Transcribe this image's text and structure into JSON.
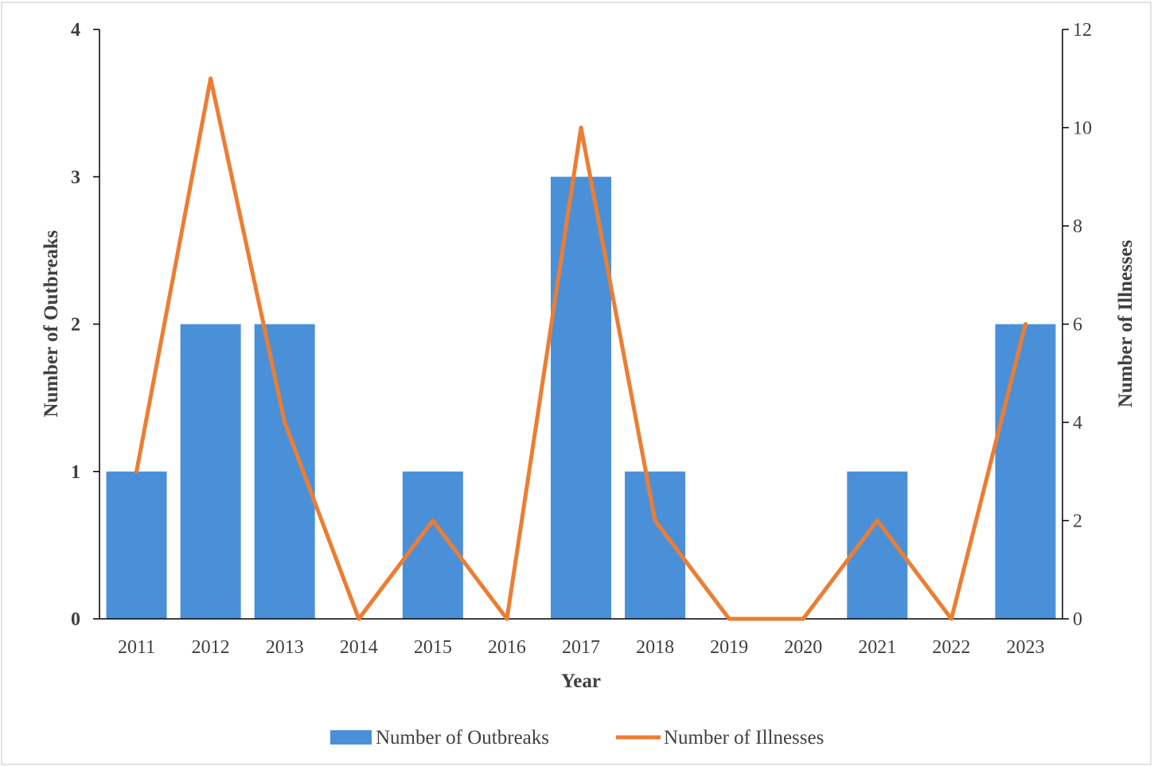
{
  "chart_data": {
    "type": "bar+line",
    "categories": [
      "2011",
      "2012",
      "2013",
      "2014",
      "2015",
      "2016",
      "2017",
      "2018",
      "2019",
      "2020",
      "2021",
      "2022",
      "2023"
    ],
    "series": [
      {
        "name": "Number of Outbreaks",
        "type": "bar",
        "axis": "left",
        "color": "#4a90d9",
        "values": [
          1,
          2,
          2,
          0,
          1,
          0,
          3,
          1,
          0,
          0,
          1,
          0,
          2
        ]
      },
      {
        "name": "Number of Illnesses",
        "type": "line",
        "axis": "right",
        "color": "#ed7d31",
        "values": [
          3,
          11,
          4,
          0,
          2,
          0,
          10,
          2,
          0,
          0,
          2,
          0,
          6
        ]
      }
    ],
    "xlabel": "Year",
    "ylabel_left": "Number of Outbreaks",
    "ylabel_right": "Number of Illnesses",
    "ylim_left": [
      0,
      4
    ],
    "yticks_left": [
      "0",
      "1",
      "2",
      "3",
      "4"
    ],
    "ylim_right": [
      0,
      12
    ],
    "yticks_right": [
      "0",
      "2",
      "4",
      "6",
      "8",
      "10",
      "12"
    ],
    "grid": false,
    "legend": "bottom"
  }
}
